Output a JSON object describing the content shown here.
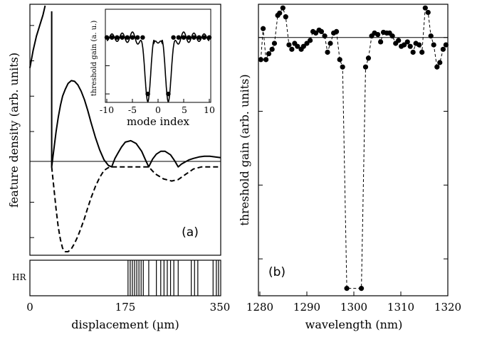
{
  "panel_a": {
    "ylabel": "feature density (arb. units)",
    "xlabel": "displacement (µm)",
    "xticks": [
      "0",
      "175",
      "350"
    ],
    "tag": "(a)",
    "hr_label": "HR"
  },
  "inset": {
    "ylabel": "threshold gain (a. u.)",
    "xlabel": "mode index",
    "xticks": [
      "-10",
      "-5",
      "0",
      "5",
      "10"
    ]
  },
  "panel_b": {
    "ylabel": "threshold gain (arb. units)",
    "xlabel": "wavelength (nm)",
    "xticks": [
      "1280",
      "1290",
      "1300",
      "1310",
      "1320"
    ],
    "tag": "(b)"
  },
  "chart_data": [
    {
      "type": "line",
      "panel": "(a)",
      "xlabel": "displacement (µm)",
      "ylabel": "feature density (arb. units)",
      "xlim": [
        0,
        350
      ],
      "ylim": [
        -1.25,
        2.3
      ],
      "series": [
        {
          "style": "solid",
          "x": [
            0,
            6,
            12,
            18,
            24,
            28
          ],
          "y": [
            1.4,
            1.65,
            1.85,
            2.0,
            2.15,
            2.28
          ]
        },
        {
          "style": "solid",
          "x": [
            40,
            40,
            44,
            48,
            52,
            56,
            60,
            65,
            70,
            76,
            82,
            88,
            94,
            100,
            106,
            112,
            120,
            128,
            136,
            144,
            150,
            152,
            156,
            162,
            168,
            175,
            185,
            195,
            205,
            212,
            218,
            225,
            232,
            240,
            248,
            258,
            266,
            272,
            278,
            285,
            292,
            300,
            310,
            320,
            330,
            340,
            350
          ],
          "y": [
            2.2,
            0,
            0.25,
            0.5,
            0.7,
            0.87,
            1.0,
            1.1,
            1.18,
            1.22,
            1.21,
            1.16,
            1.07,
            0.95,
            0.8,
            0.63,
            0.42,
            0.24,
            0.1,
            0.02,
            0.0,
            0.04,
            0.12,
            0.2,
            0.28,
            0.35,
            0.37,
            0.33,
            0.22,
            0.1,
            0.0,
            0.11,
            0.18,
            0.22,
            0.22,
            0.17,
            0.08,
            0.0,
            0.04,
            0.07,
            0.1,
            0.12,
            0.14,
            0.15,
            0.15,
            0.14,
            0.13
          ]
        },
        {
          "style": "dashed",
          "x": [
            40,
            44,
            48,
            52,
            56,
            60,
            65,
            70,
            76,
            82,
            88,
            94,
            100,
            106,
            112,
            120,
            128,
            136,
            144,
            150,
            160,
            175,
            190,
            205,
            218,
            230,
            245,
            260,
            272,
            285,
            300,
            315,
            330,
            340,
            350
          ],
          "y": [
            0,
            -0.3,
            -0.6,
            -0.85,
            -1.03,
            -1.15,
            -1.2,
            -1.2,
            -1.16,
            -1.08,
            -0.98,
            -0.86,
            -0.73,
            -0.58,
            -0.44,
            -0.28,
            -0.15,
            -0.05,
            -0.01,
            0.0,
            0.0,
            0.0,
            0.0,
            0.0,
            0.0,
            -0.1,
            -0.17,
            -0.2,
            -0.18,
            -0.11,
            -0.03,
            0.0,
            0.0,
            0.0,
            0.0
          ]
        }
      ]
    },
    {
      "type": "table",
      "panel": "HR layer stack",
      "xlim": [
        0,
        350
      ],
      "interfaces": [
        180,
        184,
        188,
        192,
        196,
        200,
        204,
        208,
        218,
        232,
        240,
        246,
        252,
        258,
        264,
        272,
        296,
        302,
        308,
        336,
        342,
        346
      ]
    },
    {
      "type": "line",
      "panel": "inset",
      "xlabel": "mode index",
      "ylabel": "threshold gain (a. u.)",
      "xlim": [
        -10,
        10
      ],
      "ylim": [
        -1.15,
        0.5
      ],
      "series": [
        {
          "markers": "filled-circle",
          "x": [
            -10,
            -9,
            -8,
            -7,
            -6,
            -5,
            -4,
            -3,
            -2,
            2,
            3,
            4,
            5,
            6,
            7,
            8,
            9,
            10
          ],
          "y": [
            0,
            0,
            0,
            0,
            0,
            0,
            0,
            0,
            -1,
            -1,
            0,
            0,
            0,
            0,
            0,
            0,
            0,
            0
          ]
        }
      ]
    },
    {
      "type": "scatter",
      "panel": "(b)",
      "xlabel": "wavelength (nm)",
      "ylabel": "threshold gain (arb. units)",
      "xlim": [
        1280,
        1320
      ],
      "ylim": [
        -3.5,
        0.45
      ],
      "hline": 0,
      "series": [
        {
          "markers": "filled-circle",
          "line": "dashed",
          "x": [
            1280.2,
            1280.7,
            1281.3,
            1281.9,
            1282.6,
            1283.1,
            1283.8,
            1284.2,
            1284.9,
            1285.5,
            1286.2,
            1286.8,
            1287.4,
            1288.0,
            1288.8,
            1289.3,
            1290.0,
            1290.7,
            1291.3,
            1291.9,
            1292.6,
            1293.1,
            1293.8,
            1294.4,
            1295.0,
            1295.7,
            1296.3,
            1297.0,
            1297.6,
            1298.5,
            1301.6,
            1302.5,
            1303.1,
            1303.8,
            1304.4,
            1305.1,
            1305.7,
            1306.3,
            1307.0,
            1307.6,
            1308.2,
            1308.9,
            1309.5,
            1310.1,
            1310.7,
            1311.4,
            1312.0,
            1312.6,
            1313.2,
            1313.9,
            1314.5,
            1315.2,
            1315.8,
            1316.4,
            1317.0,
            1317.7,
            1318.3,
            1319.0,
            1319.6
          ],
          "y": [
            -0.3,
            0.12,
            -0.3,
            -0.22,
            -0.16,
            -0.08,
            0.3,
            0.33,
            0.4,
            0.28,
            -0.1,
            -0.16,
            -0.08,
            -0.12,
            -0.16,
            -0.12,
            -0.08,
            -0.04,
            0.08,
            0.06,
            0.1,
            0.08,
            0.02,
            -0.2,
            -0.08,
            0.06,
            0.08,
            -0.3,
            -0.4,
            -3.4,
            -3.4,
            -0.4,
            -0.28,
            0.02,
            0.06,
            0.04,
            -0.06,
            0.07,
            0.06,
            0.06,
            0.02,
            -0.08,
            -0.04,
            -0.12,
            -0.1,
            -0.06,
            -0.12,
            -0.2,
            -0.08,
            -0.1,
            -0.2,
            0.4,
            0.34,
            0.02,
            -0.1,
            -0.4,
            -0.34,
            -0.16,
            -0.1
          ]
        }
      ]
    }
  ]
}
